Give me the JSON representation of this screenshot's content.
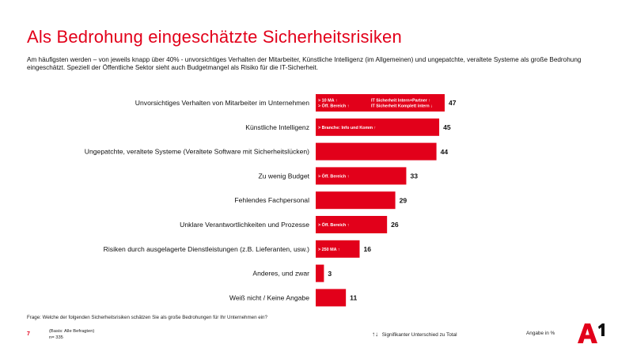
{
  "header": {
    "title": "Als Bedrohung eingeschätzte Sicherheitsrisiken",
    "subtitle": "Am häufigsten werden – von jeweils knapp über 40% - unvorsichtiges Verhalten der Mitarbeiter, Künstliche Intelligenz (im Allgemeinen) und ungepatchte, veraltete Systeme als große Bedrohung eingeschätzt. Speziell der Öffentliche Sektor sieht auch Budgetmangel als Risiko für die IT-Sicherheit."
  },
  "chart_data": {
    "type": "bar",
    "orientation": "horizontal",
    "categories": [
      "Unvorsichtiges Verhalten von Mitarbeiter im Unternehmen",
      "Künstliche Intelligenz",
      "Ungepatchte, veraltete Systeme (Veraltete Software mit Sicherheitslücken)",
      "Zu wenig Budget",
      "Fehlendes Fachpersonal",
      "Unklare Verantwortlichkeiten und Prozesse",
      "Risiken durch ausgelagerte Dienstleistungen (z.B. Lieferanten, usw.)",
      "Anderes, und zwar",
      "Weiß nicht / Keine Angabe"
    ],
    "values": [
      47,
      45,
      44,
      33,
      29,
      26,
      16,
      3,
      11
    ],
    "xlim": [
      0,
      47
    ],
    "unit": "Angabe in %",
    "color": "#e2001a",
    "annotations": [
      {
        "index": 0,
        "left": [
          "> 10 MA ↑",
          "> Öff. Bereich ↑"
        ],
        "right": [
          "IT Sicherheit Intern+Partner ↑",
          "IT Sicherheit Komplett intern ↓"
        ]
      },
      {
        "index": 1,
        "left": [
          "> Branche: Info und Komm ↑"
        ],
        "right": []
      },
      {
        "index": 3,
        "left": [
          "> Öff. Bereich ↑"
        ],
        "right": []
      },
      {
        "index": 5,
        "left": [
          "> Öff. Bereich ↑"
        ],
        "right": []
      },
      {
        "index": 6,
        "left": [
          "> 250 MA ↑"
        ],
        "right": []
      }
    ]
  },
  "footer": {
    "question": "Frage: Welche der folgenden Sicherheitsrisiken schätzen Sie als große Bedrohungen für Ihr Unternehmen ein?",
    "page": "7",
    "basis": "(Basis: Alle Befragten)",
    "n": "n= 335",
    "legend_arrows": "↑↓",
    "legend_text": "Signifikanter Unterschied zu Total",
    "unit_note": "Angabe in %",
    "logo_text": "A1"
  }
}
